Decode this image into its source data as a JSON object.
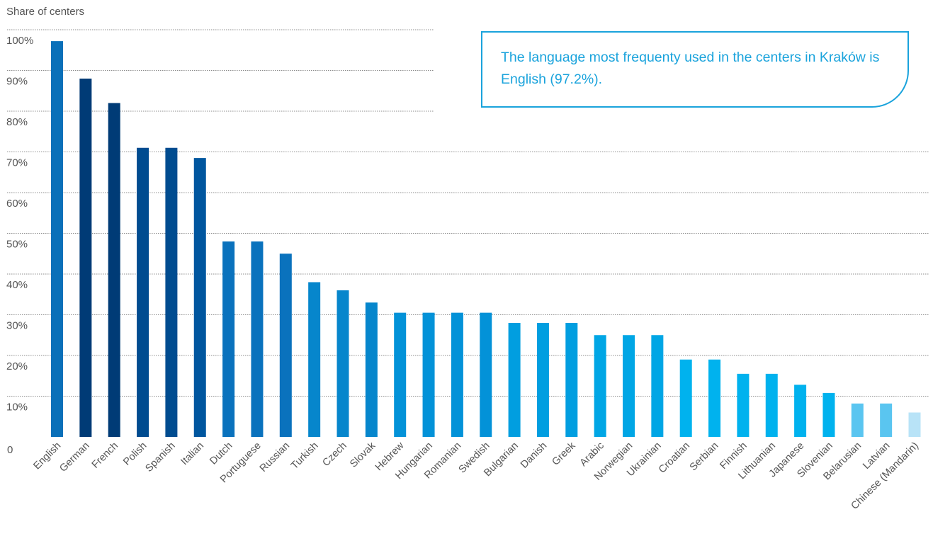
{
  "chart_data": {
    "type": "bar",
    "ylabel": "Share of centers",
    "ylim": [
      0,
      100
    ],
    "yticks": [
      "0",
      "10%",
      "20%",
      "30%",
      "40%",
      "50%",
      "60%",
      "70%",
      "80%",
      "90%",
      "100%"
    ],
    "grid": true,
    "categories": [
      "English",
      "German",
      "French",
      "Polish",
      "Spanish",
      "Italian",
      "Dutch",
      "Portuguese",
      "Russian",
      "Turkish",
      "Czech",
      "Slovak",
      "Hebrew",
      "Hungarian",
      "Romanian",
      "Swedish",
      "Bulgarian",
      "Danish",
      "Greek",
      "Arabic",
      "Norwegian",
      "Ukrainian",
      "Croatian",
      "Serbian",
      "Finnish",
      "Lithuanian",
      "Japanese",
      "Slovenian",
      "Belarusian",
      "Latvian",
      "Chinese (Mandarin)"
    ],
    "values": [
      97.2,
      88,
      82,
      71,
      71,
      68.5,
      48,
      48,
      45,
      38,
      36,
      33,
      30.5,
      30.5,
      30.5,
      30.5,
      28,
      28,
      28,
      25,
      25,
      25,
      19,
      19,
      15.5,
      15.5,
      12.8,
      10.8,
      8.2,
      8.2,
      6
    ],
    "colors": [
      "#0a70b9",
      "#003b76",
      "#003b76",
      "#004c90",
      "#004c90",
      "#00569f",
      "#0a72bd",
      "#0a72bd",
      "#0a72bd",
      "#0686cc",
      "#0686cc",
      "#0686cc",
      "#0392d8",
      "#0392d8",
      "#0392d8",
      "#0392d8",
      "#019ee0",
      "#019ee0",
      "#019ee0",
      "#00a6e5",
      "#00a6e5",
      "#00a6e5",
      "#00b2ee",
      "#00b2ee",
      "#00b2ee",
      "#00b2ee",
      "#00b2ee",
      "#00b2ee",
      "#5ac5f0",
      "#5ac5f0",
      "#b8e3f7"
    ]
  },
  "callout": {
    "text": "The language most frequenty used in the centers in Kraków is English (97.2%)."
  }
}
